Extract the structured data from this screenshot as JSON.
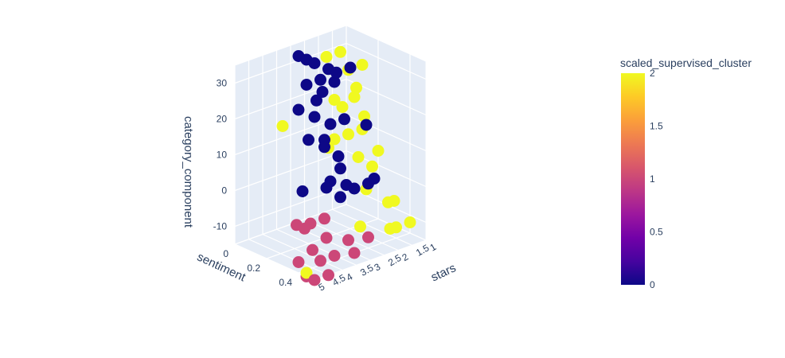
{
  "chart_data": {
    "type": "scatter3d",
    "title": "",
    "axes": {
      "x": {
        "label": "stars",
        "ticks": [
          "1",
          "1.5",
          "2",
          "2.5",
          "3",
          "3.5",
          "4",
          "4.5",
          "5"
        ],
        "range": [
          1,
          5
        ]
      },
      "y": {
        "label": "sentiment",
        "ticks": [
          "0",
          "0.2",
          "0.4"
        ],
        "range": [
          0,
          0.5
        ]
      },
      "z": {
        "label": "category_component",
        "ticks": [
          "-10",
          "0",
          "10",
          "20",
          "30"
        ],
        "range": [
          -15,
          35
        ]
      }
    },
    "colorbar": {
      "title": "scaled_supervised_cluster",
      "ticks": [
        "0",
        "0.5",
        "1",
        "1.5",
        "2"
      ],
      "range": [
        0,
        2
      ],
      "colorscale": [
        "#0d0887",
        "#46039f",
        "#7201a8",
        "#9c179e",
        "#bd3786",
        "#d8576b",
        "#ed7953",
        "#fb9f3a",
        "#fdca26",
        "#f0f921"
      ]
    },
    "grid": true,
    "series": [
      {
        "cluster": 0,
        "color": "#0d0887",
        "points": [
          [
            3.0,
            0.05,
            33
          ],
          [
            3.0,
            0.1,
            33
          ],
          [
            3.0,
            0.15,
            33
          ],
          [
            2.5,
            0.15,
            30
          ],
          [
            2.5,
            0.2,
            30
          ],
          [
            2.0,
            0.2,
            30
          ],
          [
            3.0,
            0.1,
            26
          ],
          [
            3.0,
            0.2,
            26
          ],
          [
            2.5,
            0.1,
            26
          ],
          [
            3.5,
            0.25,
            26
          ],
          [
            2.0,
            0.1,
            24
          ],
          [
            3.0,
            0.05,
            18
          ],
          [
            3.0,
            0.15,
            18
          ],
          [
            3.0,
            0.25,
            18
          ],
          [
            2.5,
            0.25,
            18
          ],
          [
            3.5,
            0.3,
            16
          ],
          [
            2.0,
            0.3,
            16
          ],
          [
            3.5,
            0.2,
            14
          ],
          [
            3.5,
            0.3,
            14
          ],
          [
            3.0,
            0.3,
            10
          ],
          [
            3.5,
            0.4,
            10
          ],
          [
            4.0,
            0.4,
            6
          ],
          [
            3.0,
            0.35,
            3
          ],
          [
            3.0,
            0.4,
            3
          ],
          [
            2.5,
            0.4,
            3
          ],
          [
            3.5,
            0.4,
            2
          ],
          [
            2.0,
            0.35,
            2
          ],
          [
            4.0,
            0.25,
            2
          ],
          [
            3.0,
            0.25,
            2
          ]
        ]
      },
      {
        "cluster": 1,
        "color": "#cc4778",
        "points": [
          [
            4.5,
            0.3,
            -5
          ],
          [
            4.5,
            0.35,
            -5
          ],
          [
            4.0,
            0.3,
            -6
          ],
          [
            4.0,
            0.4,
            -8
          ],
          [
            3.5,
            0.3,
            -6
          ],
          [
            4.5,
            0.4,
            -10
          ],
          [
            4.5,
            0.45,
            -12
          ],
          [
            4.0,
            0.45,
            -12
          ],
          [
            5.0,
            0.4,
            -12
          ],
          [
            3.0,
            0.4,
            -15
          ],
          [
            5.0,
            0.45,
            -15
          ],
          [
            5.0,
            0.5,
            -15
          ],
          [
            4.5,
            0.5,
            -15
          ],
          [
            2.5,
            0.4,
            -12
          ],
          [
            3.5,
            0.45,
            -9
          ]
        ]
      },
      {
        "cluster": 2,
        "color": "#f0f921",
        "points": [
          [
            1.5,
            0.05,
            30
          ],
          [
            2.0,
            0.05,
            30
          ],
          [
            1.0,
            0.1,
            26
          ],
          [
            1.5,
            0.1,
            26
          ],
          [
            1.5,
            0.15,
            22
          ],
          [
            2.0,
            0.1,
            19
          ],
          [
            2.0,
            0.15,
            18
          ],
          [
            1.0,
            0.05,
            16
          ],
          [
            1.5,
            0.2,
            15
          ],
          [
            1.0,
            0.1,
            8
          ],
          [
            1.5,
            0.1,
            8
          ],
          [
            2.0,
            0.1,
            8
          ],
          [
            2.5,
            0.15,
            8
          ],
          [
            2.0,
            0.25,
            6
          ],
          [
            1.0,
            0.2,
            4
          ],
          [
            1.5,
            0.25,
            2
          ],
          [
            2.0,
            0.3,
            -2
          ],
          [
            1.5,
            0.35,
            -6
          ],
          [
            1.0,
            0.3,
            -8
          ],
          [
            2.5,
            0.35,
            -10
          ],
          [
            1.0,
            0.4,
            -12
          ],
          [
            1.5,
            0.4,
            -12
          ],
          [
            2.0,
            0.45,
            -10
          ],
          [
            5.0,
            0.3,
            24
          ],
          [
            5.0,
            0.45,
            -14
          ]
        ]
      }
    ]
  }
}
